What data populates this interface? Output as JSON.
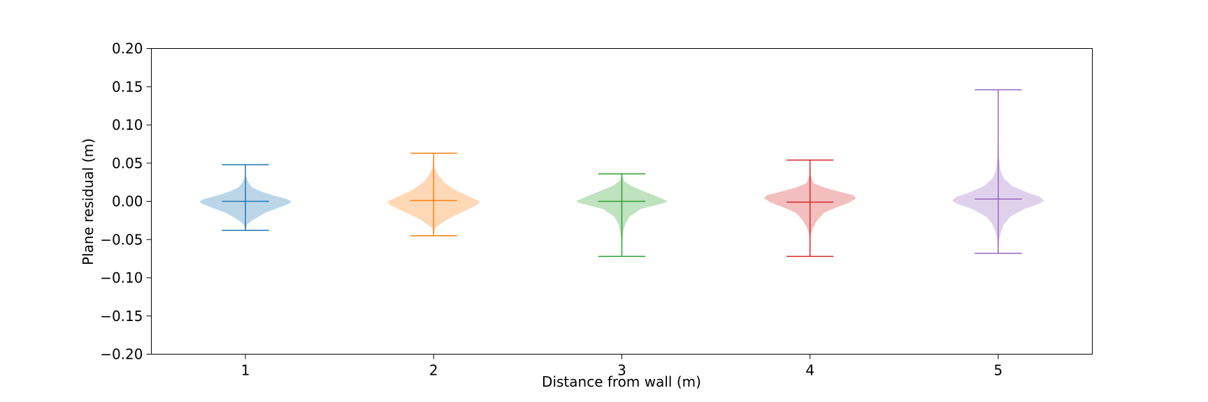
{
  "chart_data": {
    "type": "violin",
    "title": "",
    "xlabel": "Distance from wall (m)",
    "ylabel": "Plane residual (m)",
    "ylim": [
      -0.2,
      0.2
    ],
    "yticks": [
      -0.2,
      -0.15,
      -0.1,
      -0.05,
      0.0,
      0.05,
      0.1,
      0.15,
      0.2
    ],
    "ytick_labels": [
      "−0.20",
      "−0.15",
      "−0.10",
      "−0.05",
      "0.00",
      "0.05",
      "0.10",
      "0.15",
      "0.20"
    ],
    "categories": [
      "1",
      "2",
      "3",
      "4",
      "5"
    ],
    "grid": false,
    "series": [
      {
        "category": "1",
        "color": "#1f77b4",
        "min": -0.038,
        "max": 0.048,
        "mean": 0.0,
        "profile": [
          [
            -0.038,
            0.0
          ],
          [
            -0.03,
            0.04
          ],
          [
            -0.025,
            0.14
          ],
          [
            -0.015,
            0.42
          ],
          [
            -0.008,
            0.72
          ],
          [
            -0.003,
            0.93
          ],
          [
            0.0,
            0.98
          ],
          [
            0.003,
            0.88
          ],
          [
            0.008,
            0.58
          ],
          [
            0.013,
            0.33
          ],
          [
            0.018,
            0.15
          ],
          [
            0.025,
            0.06
          ],
          [
            0.033,
            0.01
          ],
          [
            0.048,
            0.0
          ]
        ]
      },
      {
        "category": "2",
        "color": "#ff7f0e",
        "min": -0.045,
        "max": 0.063,
        "mean": 0.001,
        "profile": [
          [
            -0.045,
            0.0
          ],
          [
            -0.035,
            0.03
          ],
          [
            -0.025,
            0.25
          ],
          [
            -0.015,
            0.58
          ],
          [
            -0.005,
            0.92
          ],
          [
            0.0,
            0.98
          ],
          [
            0.005,
            0.8
          ],
          [
            0.015,
            0.45
          ],
          [
            0.025,
            0.22
          ],
          [
            0.035,
            0.09
          ],
          [
            0.045,
            0.02
          ],
          [
            0.063,
            0.0
          ]
        ]
      },
      {
        "category": "3",
        "color": "#2ca02c",
        "min": -0.072,
        "max": 0.036,
        "mean": 0.0,
        "profile": [
          [
            -0.072,
            0.0
          ],
          [
            -0.05,
            0.01
          ],
          [
            -0.04,
            0.03
          ],
          [
            -0.03,
            0.07
          ],
          [
            -0.02,
            0.16
          ],
          [
            -0.01,
            0.4
          ],
          [
            -0.003,
            0.85
          ],
          [
            0.0,
            0.98
          ],
          [
            0.005,
            0.8
          ],
          [
            0.012,
            0.52
          ],
          [
            0.02,
            0.2
          ],
          [
            0.027,
            0.04
          ],
          [
            0.036,
            0.0
          ]
        ]
      },
      {
        "category": "4",
        "color": "#d62728",
        "min": -0.072,
        "max": 0.054,
        "mean": -0.001,
        "profile": [
          [
            -0.072,
            0.0
          ],
          [
            -0.045,
            0.01
          ],
          [
            -0.035,
            0.06
          ],
          [
            -0.025,
            0.15
          ],
          [
            -0.015,
            0.3
          ],
          [
            -0.008,
            0.56
          ],
          [
            -0.002,
            0.82
          ],
          [
            0.004,
            0.98
          ],
          [
            0.008,
            0.92
          ],
          [
            0.013,
            0.6
          ],
          [
            0.018,
            0.3
          ],
          [
            0.024,
            0.07
          ],
          [
            0.035,
            0.01
          ],
          [
            0.054,
            0.0
          ]
        ]
      },
      {
        "category": "5",
        "color": "#9467bd",
        "min": -0.068,
        "max": 0.146,
        "mean": 0.003,
        "profile": [
          [
            -0.068,
            0.0
          ],
          [
            -0.05,
            0.02
          ],
          [
            -0.04,
            0.06
          ],
          [
            -0.03,
            0.12
          ],
          [
            -0.02,
            0.26
          ],
          [
            -0.01,
            0.55
          ],
          [
            -0.003,
            0.88
          ],
          [
            0.001,
            0.98
          ],
          [
            0.006,
            0.88
          ],
          [
            0.012,
            0.6
          ],
          [
            0.02,
            0.3
          ],
          [
            0.03,
            0.12
          ],
          [
            0.04,
            0.05
          ],
          [
            0.06,
            0.01
          ],
          [
            0.146,
            0.0
          ]
        ]
      }
    ]
  }
}
